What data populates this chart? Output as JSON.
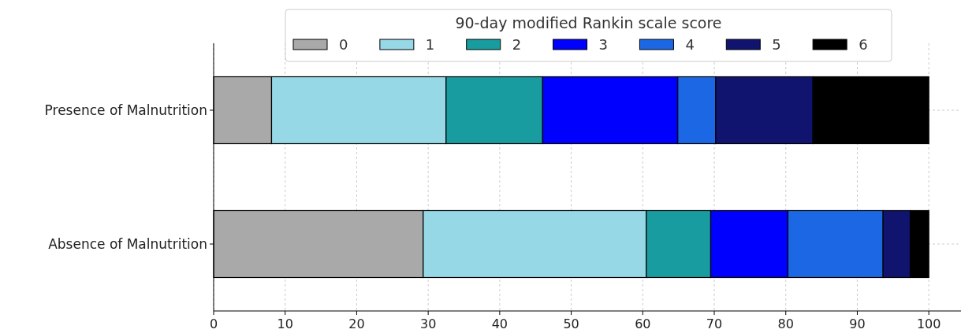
{
  "chart_data": {
    "type": "bar",
    "orientation": "horizontal",
    "stacked": true,
    "categories": [
      "Presence of Malnutrition",
      "Absence of Malnutrition"
    ],
    "legend_title": "90-day modified Rankin scale score",
    "series": [
      {
        "name": "0",
        "color": "#a9a9a9",
        "values": [
          8.1,
          29.3
        ]
      },
      {
        "name": "1",
        "color": "#96d8e6",
        "values": [
          24.4,
          31.2
        ]
      },
      {
        "name": "2",
        "color": "#189c9f",
        "values": [
          13.5,
          9.0
        ]
      },
      {
        "name": "3",
        "color": "#0000fe",
        "values": [
          18.9,
          10.8
        ]
      },
      {
        "name": "4",
        "color": "#1c68e4",
        "values": [
          5.3,
          13.3
        ]
      },
      {
        "name": "5",
        "color": "#10146e",
        "values": [
          13.6,
          3.8
        ]
      },
      {
        "name": "6",
        "color": "#000000",
        "values": [
          16.2,
          2.6
        ]
      }
    ],
    "xlim": [
      0,
      104.5
    ],
    "xticks": [
      0,
      10,
      20,
      30,
      40,
      50,
      60,
      70,
      80,
      90,
      100
    ],
    "grid": true,
    "legend": "top"
  }
}
